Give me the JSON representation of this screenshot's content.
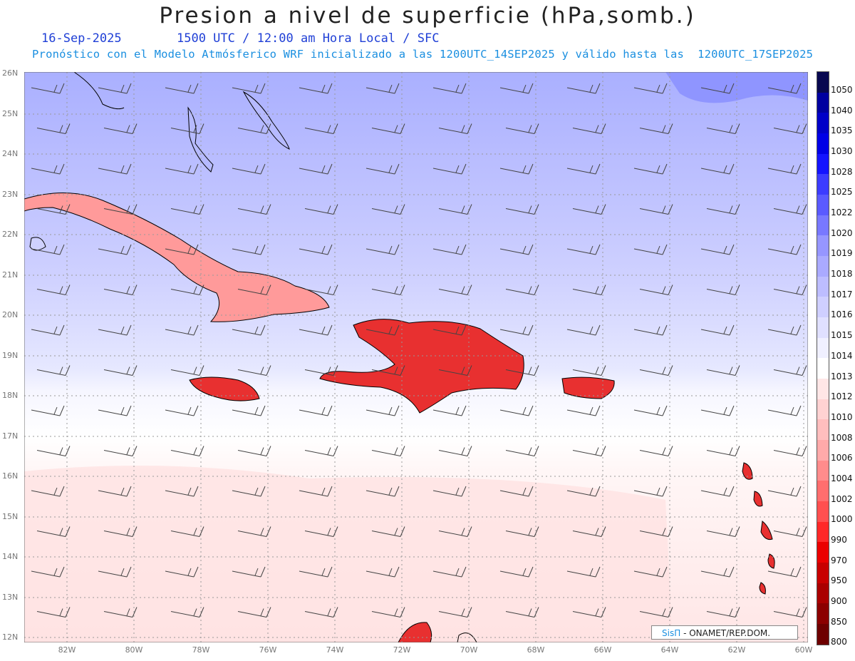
{
  "header": {
    "title": "Presion a nivel de superficie (hPa,somb.)",
    "date": "16-Sep-2025",
    "time": "1500 UTC / 12:00 am Hora Local / SFC",
    "subtitle": "Pronóstico con el Modelo Atmósferico WRF inicializado a las 1200UTC_14SEP2025 y válido hasta las  1200UTC_17SEP2025"
  },
  "axes": {
    "lat_labels": [
      "26N",
      "25N",
      "24N",
      "23N",
      "22N",
      "21N",
      "20N",
      "19N",
      "18N",
      "17N",
      "16N",
      "15N",
      "14N",
      "13N",
      "12N"
    ],
    "lon_labels": [
      "82W",
      "80W",
      "78W",
      "76W",
      "74W",
      "72W",
      "70W",
      "68W",
      "66W",
      "64W",
      "62W",
      "60W"
    ]
  },
  "colorbar": {
    "labels": [
      "1050",
      "1040",
      "1035",
      "1030",
      "1028",
      "1025",
      "1022",
      "1020",
      "1019",
      "1018",
      "1017",
      "1016",
      "1015",
      "1014",
      "1013",
      "1012",
      "1010",
      "1008",
      "1006",
      "1004",
      "1002",
      "1000",
      "990",
      "970",
      "950",
      "900",
      "850",
      "800"
    ],
    "colors": [
      "#080850",
      "#0000a0",
      "#0000c8",
      "#0000e6",
      "#1414ff",
      "#3c3cff",
      "#5a5aff",
      "#7878ff",
      "#9696ff",
      "#aaaaff",
      "#bdbdff",
      "#cfcfff",
      "#e0e0ff",
      "#f0f0ff",
      "#ffffff",
      "#ffe6e6",
      "#ffd2d2",
      "#ffbebe",
      "#ffaaaa",
      "#ff8c8c",
      "#ff6e6e",
      "#ff5050",
      "#ff2828",
      "#eb0000",
      "#c80000",
      "#aa0000",
      "#8c0000",
      "#6e0000"
    ]
  },
  "credit": {
    "brand": "SisΠ",
    "text": "- ONAMET/REP.DOM."
  }
}
